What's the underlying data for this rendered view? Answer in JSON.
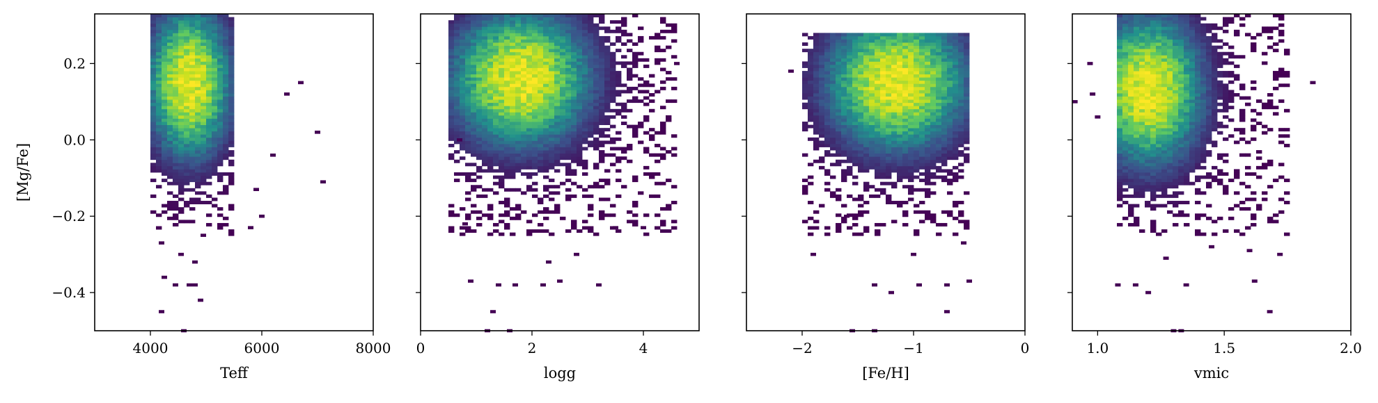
{
  "chart_data": {
    "type": "heatmap",
    "shared_ylabel": "[Mg/Fe]",
    "ylim": [
      -0.5,
      0.33
    ],
    "yticks": [
      -0.4,
      -0.2,
      0.0,
      0.2
    ],
    "ytick_labels": [
      "−0.4",
      "−0.2",
      "0.0",
      "0.2"
    ],
    "colormap": [
      "#440154",
      "#3b528b",
      "#21918c",
      "#5ec962",
      "#c8e020",
      "#fde725"
    ],
    "panels": [
      {
        "xlabel": "Teff",
        "xlim": [
          3000,
          8000
        ],
        "xticks": [
          4000,
          6000,
          8000
        ],
        "xtick_labels": [
          "4000",
          "6000",
          "8000"
        ],
        "density_peaks": [
          {
            "x": 4700,
            "y": 0.15,
            "sx": 420,
            "sy": 0.11
          }
        ],
        "bins_x": 50,
        "support": {
          "x": [
            4000,
            5500
          ],
          "y": [
            -0.25,
            0.33
          ]
        },
        "outliers": [
          [
            7100,
            -0.11
          ],
          [
            7000,
            0.02
          ],
          [
            6700,
            0.15
          ],
          [
            6450,
            0.12
          ],
          [
            6200,
            -0.04
          ],
          [
            5900,
            -0.13
          ],
          [
            6000,
            -0.2
          ],
          [
            5800,
            -0.23
          ],
          [
            4200,
            -0.27
          ],
          [
            4250,
            -0.36
          ],
          [
            4450,
            -0.38
          ],
          [
            4700,
            -0.38
          ],
          [
            4800,
            -0.38
          ],
          [
            4900,
            -0.42
          ],
          [
            4200,
            -0.45
          ],
          [
            4600,
            -0.5
          ],
          [
            4550,
            -0.3
          ],
          [
            4800,
            -0.32
          ],
          [
            4950,
            -0.25
          ]
        ]
      },
      {
        "xlabel": "logg",
        "xlim": [
          0,
          5
        ],
        "xticks": [
          0,
          2,
          4
        ],
        "xtick_labels": [
          "0",
          "2",
          "4"
        ],
        "density_peaks": [
          {
            "x": 1.8,
            "y": 0.16,
            "sx": 0.7,
            "sy": 0.1
          }
        ],
        "bins_x": 50,
        "support": {
          "x": [
            0.5,
            4.6
          ],
          "y": [
            -0.25,
            0.33
          ]
        },
        "outliers": [
          [
            0.9,
            -0.37
          ],
          [
            1.4,
            -0.38
          ],
          [
            1.7,
            -0.38
          ],
          [
            2.2,
            -0.38
          ],
          [
            2.5,
            -0.37
          ],
          [
            3.2,
            -0.38
          ],
          [
            1.3,
            -0.45
          ],
          [
            1.2,
            -0.5
          ],
          [
            1.6,
            -0.5
          ],
          [
            2.3,
            -0.32
          ],
          [
            2.8,
            -0.3
          ],
          [
            3.5,
            -0.23
          ],
          [
            4.0,
            -0.23
          ],
          [
            0.8,
            -0.22
          ],
          [
            0.7,
            0.0
          ],
          [
            4.6,
            0.2
          ]
        ]
      },
      {
        "xlabel": "[Fe/H]",
        "xlim": [
          -2.5,
          0
        ],
        "xticks": [
          -2,
          -1,
          0
        ],
        "xtick_labels": [
          "−2",
          "−1",
          "0"
        ],
        "density_peaks": [
          {
            "x": -1.15,
            "y": 0.15,
            "sx": 0.35,
            "sy": 0.1
          }
        ],
        "bins_x": 50,
        "support": {
          "x": [
            -2.0,
            -0.5
          ],
          "y": [
            -0.25,
            0.28
          ]
        },
        "outliers": [
          [
            -1.9,
            -0.3
          ],
          [
            -1.35,
            -0.38
          ],
          [
            -1.2,
            -0.4
          ],
          [
            -0.95,
            -0.38
          ],
          [
            -0.7,
            -0.38
          ],
          [
            -0.5,
            -0.37
          ],
          [
            -1.55,
            -0.5
          ],
          [
            -1.35,
            -0.5
          ],
          [
            -0.7,
            -0.45
          ],
          [
            -1.0,
            -0.3
          ],
          [
            -1.6,
            -0.2
          ],
          [
            -0.55,
            -0.27
          ],
          [
            -2.1,
            0.18
          ]
        ]
      },
      {
        "xlabel": "vmic",
        "xlim": [
          0.9,
          2.0
        ],
        "xticks": [
          1.0,
          1.5,
          2.0
        ],
        "xtick_labels": [
          "1.0",
          "1.5",
          "2.0"
        ],
        "density_peaks": [
          {
            "x": 1.2,
            "y": 0.13,
            "sx": 0.12,
            "sy": 0.11
          }
        ],
        "bins_x": 50,
        "support": {
          "x": [
            1.08,
            1.75
          ],
          "y": [
            -0.25,
            0.33
          ]
        },
        "outliers": [
          [
            1.85,
            0.15
          ],
          [
            0.91,
            0.1
          ],
          [
            0.98,
            0.12
          ],
          [
            1.0,
            0.06
          ],
          [
            0.97,
            0.2
          ],
          [
            1.08,
            -0.38
          ],
          [
            1.15,
            -0.38
          ],
          [
            1.2,
            -0.4
          ],
          [
            1.35,
            -0.38
          ],
          [
            1.62,
            -0.37
          ],
          [
            1.68,
            -0.45
          ],
          [
            1.3,
            -0.5
          ],
          [
            1.33,
            -0.5
          ],
          [
            1.27,
            -0.31
          ],
          [
            1.45,
            -0.28
          ],
          [
            1.6,
            -0.29
          ],
          [
            1.72,
            -0.3
          ]
        ]
      }
    ]
  }
}
